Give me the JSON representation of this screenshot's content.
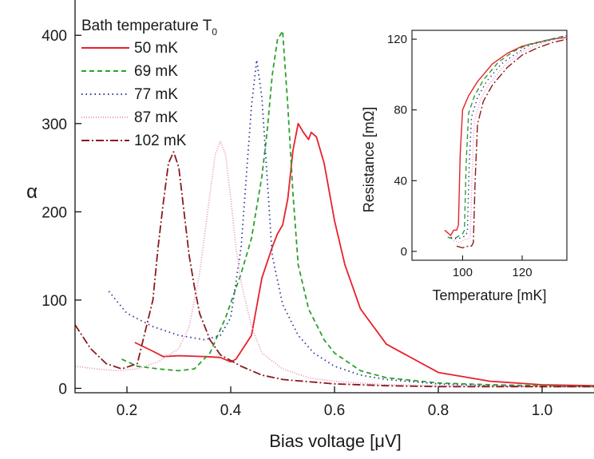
{
  "chart_data": [
    {
      "type": "line",
      "title": "",
      "xlabel": "Bias voltage [μV]",
      "ylabel": "α",
      "xlim": [
        0.1,
        1.1
      ],
      "ylim": [
        -5,
        440
      ],
      "x_ticks": [
        0.2,
        0.4,
        0.6,
        0.8,
        1.0
      ],
      "x_tick_labels": [
        "0.2",
        "0.4",
        "0.6",
        "0.8",
        "1.0"
      ],
      "y_ticks": [
        0,
        100,
        200,
        300,
        400
      ],
      "y_tick_labels": [
        "0",
        "100",
        "200",
        "300",
        "400"
      ],
      "grid": false,
      "legend_title": "Bath temperature T",
      "legend_title_subscript": "0",
      "legend_position": "top-left",
      "series": [
        {
          "name": "50 mK",
          "color": "#e8202a",
          "dash": "solid",
          "x": [
            0.215,
            0.25,
            0.27,
            0.3,
            0.35,
            0.38,
            0.4,
            0.41,
            0.42,
            0.44,
            0.46,
            0.48,
            0.49,
            0.5,
            0.51,
            0.52,
            0.53,
            0.54,
            0.55,
            0.555,
            0.565,
            0.58,
            0.6,
            0.62,
            0.65,
            0.7,
            0.8,
            0.9,
            1.0,
            1.1
          ],
          "y": [
            52,
            42,
            36,
            37,
            36,
            35,
            30,
            33,
            42,
            60,
            125,
            160,
            175,
            185,
            215,
            270,
            300,
            290,
            282,
            290,
            285,
            255,
            190,
            140,
            90,
            50,
            18,
            8,
            4,
            3
          ]
        },
        {
          "name": "69 mK",
          "color": "#2ca02c",
          "dash": "6,4",
          "x": [
            0.19,
            0.22,
            0.26,
            0.3,
            0.33,
            0.36,
            0.39,
            0.42,
            0.44,
            0.45,
            0.46,
            0.47,
            0.48,
            0.49,
            0.5,
            0.51,
            0.52,
            0.53,
            0.55,
            0.58,
            0.6,
            0.65,
            0.7,
            0.8,
            0.9,
            1.0,
            1.1
          ],
          "y": [
            33,
            25,
            22,
            20,
            22,
            40,
            80,
            130,
            170,
            205,
            240,
            290,
            355,
            395,
            405,
            320,
            220,
            140,
            90,
            55,
            40,
            20,
            12,
            6,
            4,
            3,
            2
          ]
        },
        {
          "name": "77 mK",
          "color": "#2a3a9a",
          "dash": "1.5,4",
          "x": [
            0.165,
            0.2,
            0.25,
            0.3,
            0.35,
            0.38,
            0.4,
            0.42,
            0.43,
            0.44,
            0.45,
            0.46,
            0.47,
            0.48,
            0.5,
            0.53,
            0.56,
            0.6,
            0.65,
            0.7,
            0.8,
            0.9,
            1.0,
            1.1
          ],
          "y": [
            110,
            85,
            70,
            60,
            55,
            60,
            80,
            160,
            240,
            320,
            372,
            330,
            240,
            150,
            95,
            60,
            40,
            25,
            15,
            10,
            5,
            3,
            2,
            2
          ]
        },
        {
          "name": "87 mK",
          "color": "#e899bb",
          "dash": "1,2",
          "x": [
            0.1,
            0.14,
            0.18,
            0.22,
            0.26,
            0.3,
            0.32,
            0.34,
            0.36,
            0.37,
            0.38,
            0.39,
            0.4,
            0.41,
            0.42,
            0.44,
            0.46,
            0.5,
            0.55,
            0.6,
            0.7,
            0.8,
            1.0,
            1.1
          ],
          "y": [
            25,
            22,
            20,
            22,
            30,
            45,
            70,
            130,
            220,
            265,
            280,
            265,
            215,
            160,
            120,
            70,
            40,
            22,
            12,
            8,
            4,
            3,
            2,
            2
          ]
        },
        {
          "name": "102 mK",
          "color": "#8b1a1a",
          "dash": "10,3,2,3",
          "x": [
            0.1,
            0.13,
            0.16,
            0.19,
            0.22,
            0.25,
            0.26,
            0.27,
            0.28,
            0.29,
            0.3,
            0.31,
            0.32,
            0.33,
            0.34,
            0.36,
            0.38,
            0.42,
            0.46,
            0.5,
            0.6,
            0.7,
            0.8,
            1.0,
            1.1
          ],
          "y": [
            72,
            45,
            28,
            22,
            28,
            100,
            160,
            210,
            255,
            268,
            250,
            200,
            150,
            115,
            85,
            55,
            38,
            25,
            15,
            10,
            5,
            3,
            2,
            2,
            2
          ]
        }
      ]
    },
    {
      "type": "line",
      "title": "",
      "xlabel": "Temperature [mK]",
      "ylabel": "Resistance [mΩ]",
      "xlim": [
        83,
        135
      ],
      "ylim": [
        -5,
        125
      ],
      "x_ticks": [
        100,
        120
      ],
      "x_tick_labels": [
        "100",
        "120"
      ],
      "y_ticks": [
        0,
        40,
        80,
        120
      ],
      "y_tick_labels": [
        "0",
        "40",
        "80",
        "120"
      ],
      "grid": false,
      "position": "inset top-right",
      "series": [
        {
          "name": "50 mK",
          "color": "#e8202a",
          "dash": "solid",
          "x": [
            94,
            96,
            97,
            98,
            98.6,
            99.2,
            100,
            102,
            105,
            110,
            115,
            120,
            125,
            130,
            135
          ],
          "y": [
            12,
            9,
            12,
            12,
            15,
            55,
            80,
            88,
            96,
            106,
            112,
            116,
            118,
            120,
            121
          ]
        },
        {
          "name": "69 mK",
          "color": "#2ca02c",
          "dash": "6,4",
          "x": [
            95,
            97,
            99,
            100,
            100.6,
            101.2,
            102,
            104,
            107,
            112,
            117,
            122,
            127,
            132,
            135
          ],
          "y": [
            8,
            7,
            9,
            10,
            12,
            50,
            78,
            88,
            97,
            107,
            113,
            117,
            119,
            121,
            122
          ]
        },
        {
          "name": "77 mK",
          "color": "#2a3a9a",
          "dash": "1.5,4",
          "x": [
            96,
            98,
            100,
            101,
            101.6,
            102.2,
            103,
            105,
            108,
            113,
            118,
            123,
            128,
            133,
            135
          ],
          "y": [
            8,
            7,
            8,
            9,
            11,
            48,
            76,
            87,
            96,
            106,
            112,
            117,
            119,
            121,
            122
          ]
        },
        {
          "name": "87 mK",
          "color": "#e899bb",
          "dash": "1,2",
          "x": [
            97,
            99,
            101,
            102,
            102.6,
            103.2,
            104,
            106,
            109,
            114,
            119,
            124,
            129,
            134,
            135
          ],
          "y": [
            6,
            5,
            7,
            7,
            9,
            45,
            74,
            86,
            95,
            105,
            112,
            116,
            119,
            121,
            121
          ]
        },
        {
          "name": "102 mK",
          "color": "#8b1a1a",
          "dash": "10,3,2,3",
          "x": [
            98,
            100,
            102,
            103,
            103.6,
            104.2,
            105,
            107,
            110,
            115,
            120,
            125,
            130,
            135
          ],
          "y": [
            3,
            2,
            3,
            3,
            5,
            40,
            72,
            85,
            94,
            104,
            111,
            115,
            118,
            120
          ]
        }
      ]
    }
  ]
}
